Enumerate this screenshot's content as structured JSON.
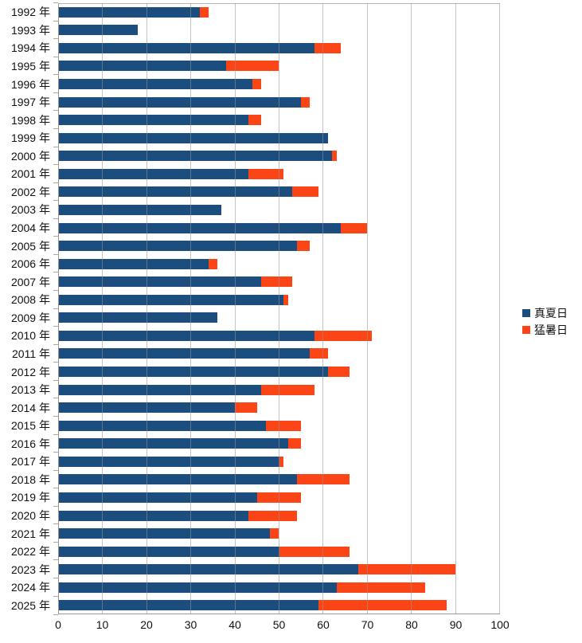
{
  "chart_data": {
    "type": "bar",
    "orientation": "horizontal",
    "stacked": true,
    "title": "",
    "xlabel": "",
    "ylabel": "",
    "xlim": [
      0,
      100
    ],
    "x_ticks": [
      0,
      10,
      20,
      30,
      40,
      50,
      60,
      70,
      80,
      90,
      100
    ],
    "grid": true,
    "legend_position": "right",
    "categories": [
      "1992 年",
      "1993 年",
      "1994 年",
      "1995 年",
      "1996 年",
      "1997 年",
      "1998 年",
      "1999 年",
      "2000 年",
      "2001 年",
      "2002 年",
      "2003 年",
      "2004 年",
      "2005 年",
      "2006 年",
      "2007 年",
      "2008 年",
      "2009 年",
      "2010 年",
      "2011 年",
      "2012 年",
      "2013 年",
      "2014 年",
      "2015 年",
      "2016 年",
      "2017 年",
      "2018 年",
      "2019 年",
      "2020 年",
      "2021 年",
      "2022 年",
      "2023 年",
      "2024 年",
      "2025 年"
    ],
    "series": [
      {
        "name": "真夏日",
        "color": "#1B4E7F",
        "values": [
          32,
          18,
          58,
          38,
          44,
          55,
          43,
          61,
          62,
          43,
          53,
          37,
          64,
          54,
          34,
          46,
          51,
          36,
          58,
          57,
          61,
          46,
          40,
          47,
          52,
          50,
          54,
          45,
          43,
          48,
          50,
          68,
          63,
          59
        ]
      },
      {
        "name": "猛暑日",
        "color": "#FB4516",
        "values": [
          2,
          0,
          6,
          12,
          2,
          2,
          3,
          0,
          1,
          8,
          6,
          0,
          6,
          3,
          2,
          7,
          1,
          0,
          13,
          4,
          5,
          12,
          5,
          8,
          3,
          1,
          12,
          10,
          11,
          2,
          16,
          22,
          20,
          29
        ]
      }
    ]
  },
  "colors": {
    "gridline": "#bdbdbd",
    "axis_line": "#989898",
    "text": "#111111",
    "background": "#ffffff"
  }
}
